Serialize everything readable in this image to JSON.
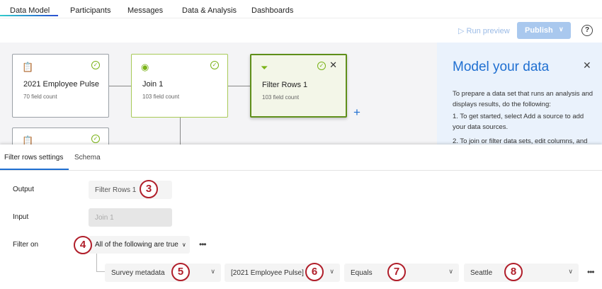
{
  "tabs": [
    "Data Model",
    "Participants",
    "Messages",
    "Data & Analysis",
    "Dashboards"
  ],
  "toolbar": {
    "run_preview": "Run preview",
    "publish": "Publish",
    "help": "?"
  },
  "canvas": {
    "nodes": [
      {
        "title": "2021 Employee Pulse",
        "sub": "70 field count"
      },
      {
        "title": "Join 1",
        "sub": "103 field count"
      },
      {
        "title": "Filter Rows 1",
        "sub": "103 field count"
      }
    ]
  },
  "help_panel": {
    "title": "Model your data",
    "p1": "To prepare a data set that runs an analysis and displays results, do the following:",
    "p2": "1. To get started, select Add a source to add your data sources.",
    "p3": "2. To join or filter data sets, edit columns, and"
  },
  "settings": {
    "tabs": [
      "Filter rows settings",
      "Schema"
    ],
    "output_label": "Output",
    "output_value": "Filter Rows 1",
    "input_label": "Input",
    "input_value": "Join 1",
    "filter_label": "Filter on",
    "filter_mode": "All of the following are true",
    "condition": {
      "field": "Survey metadata",
      "source": "[2021 Employee Pulse]",
      "operator": "Equals",
      "value": "Seattle"
    }
  },
  "badges": [
    "3",
    "4",
    "5",
    "6",
    "7",
    "8"
  ],
  "colors": {
    "accent": "#1f6fd1",
    "success": "#7ab317",
    "badge": "#b01e2a",
    "publish": "#a9c8ee"
  }
}
